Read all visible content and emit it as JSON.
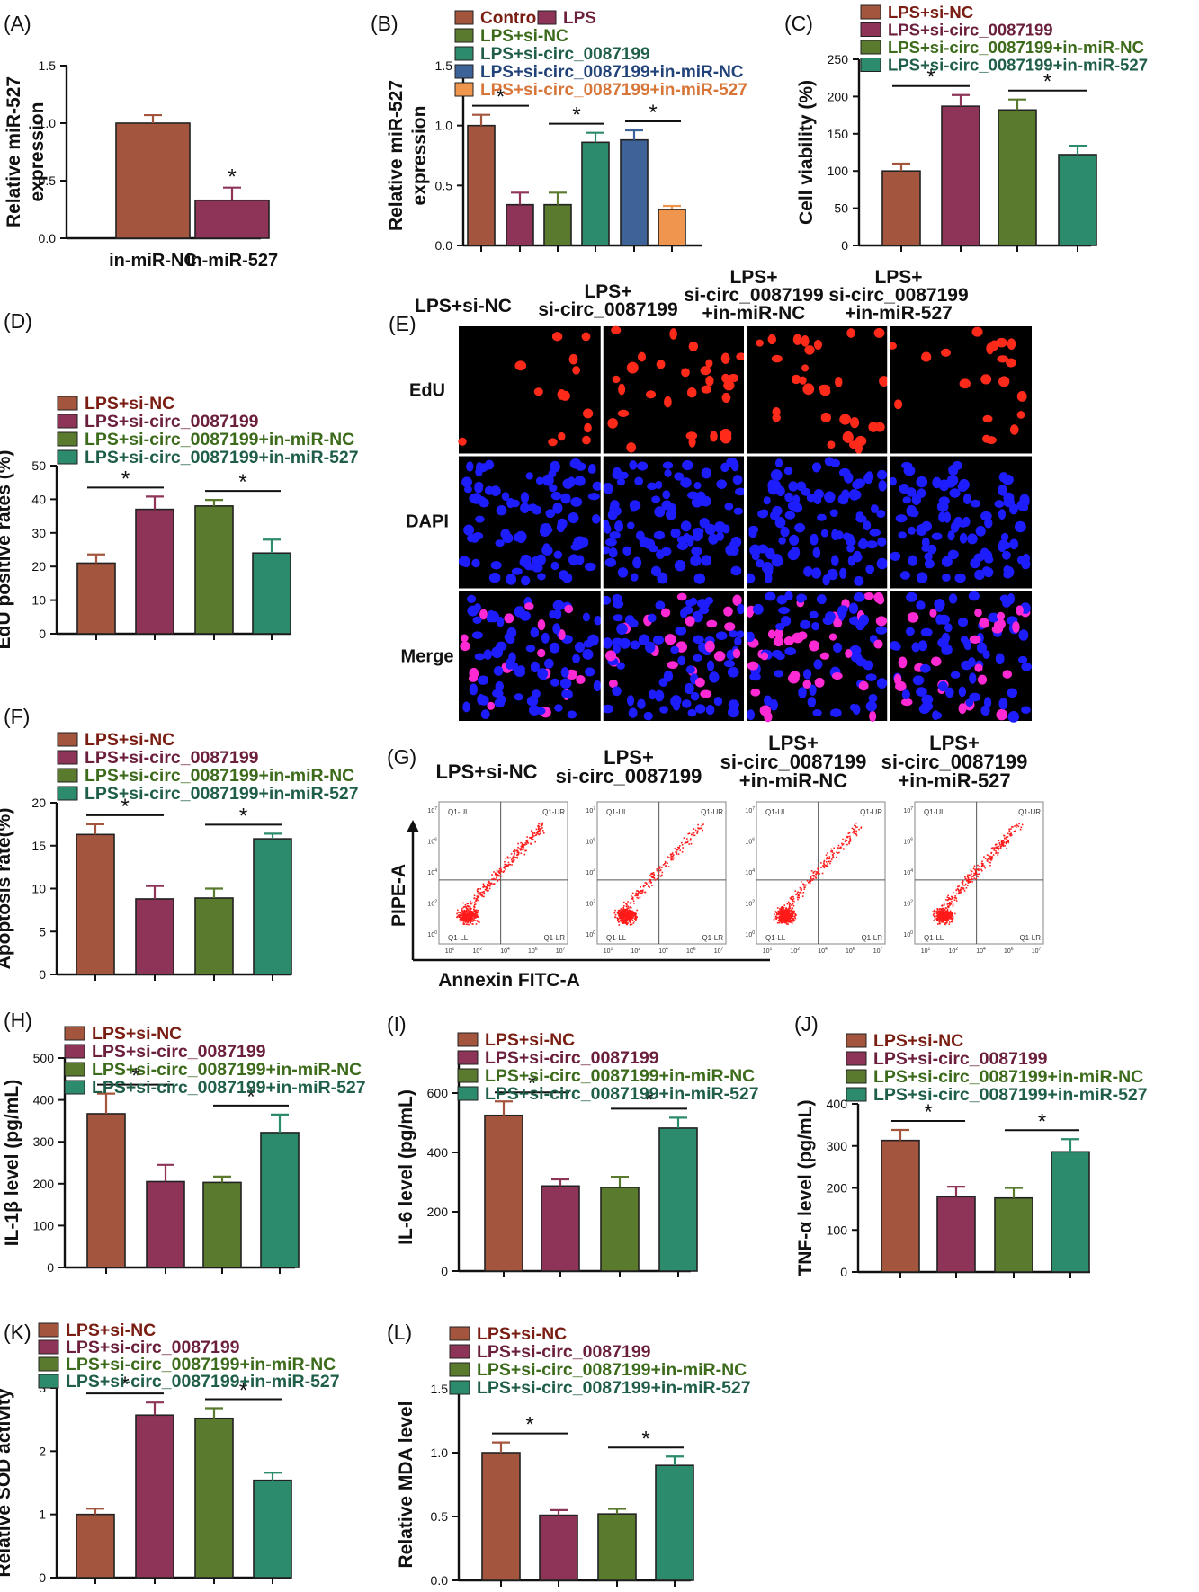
{
  "colors": {
    "c1": "#a4553e",
    "c2": "#8d3458",
    "c3": "#5a7a2d",
    "c4": "#2c8a6d",
    "c5": "#3d6399",
    "c6": "#f0954e",
    "axis": "#111111",
    "c1_text": "#7a1d12",
    "c2_text": "#6b1f3c",
    "c3_text": "#3d6b1c",
    "c4_text": "#1f5e47",
    "c5_text": "#22427a",
    "c6_text": "#d8763a"
  },
  "legend_groups4": [
    "LPS+si-NC",
    "LPS+si-circ_0087199",
    "LPS+si-circ_0087199+in-miR-NC",
    "LPS+si-circ_0087199+in-miR-527"
  ],
  "chart_data": [
    {
      "panel": "(A)",
      "type": "bar",
      "categories": [
        "in-miR-NC",
        "in-miR-527"
      ],
      "values": [
        1.0,
        0.33
      ],
      "errors": [
        0.07,
        0.11
      ],
      "ylabel": "Relative miR-527 expression",
      "ylim": [
        0,
        1.5
      ],
      "yticks": [
        "0.0",
        "0.5",
        "1.0",
        "1.5"
      ],
      "ytick_values": [
        0,
        0.5,
        1.0,
        1.5
      ],
      "significance": [
        {
          "star": "*",
          "bar": 1
        }
      ]
    },
    {
      "panel": "(B)",
      "type": "bar",
      "categories": [
        "Control",
        "LPS",
        "LPS+si-NC",
        "LPS+si-circ_0087199",
        "LPS+si-circ_0087199+in-miR-NC",
        "LPS+si-circ_0087199+in-miR-527"
      ],
      "values": [
        1.0,
        0.34,
        0.34,
        0.86,
        0.88,
        0.3
      ],
      "errors": [
        0.09,
        0.1,
        0.1,
        0.08,
        0.08,
        0.03
      ],
      "ylabel": "Relative miR-527 expression",
      "ylim": [
        0,
        1.5
      ],
      "yticks": [
        "0.0",
        "0.5",
        "1.0",
        "1.5"
      ],
      "ytick_values": [
        0,
        0.5,
        1.0,
        1.5
      ],
      "significance": [
        {
          "star": "*",
          "from": 0,
          "to": 1
        },
        {
          "star": "*",
          "from": 2,
          "to": 3
        },
        {
          "star": "*",
          "from": 4,
          "to": 5
        }
      ]
    },
    {
      "panel": "(C)",
      "type": "bar",
      "categories": [
        "LPS+si-NC",
        "LPS+si-circ_0087199",
        "LPS+si-circ_0087199+in-miR-NC",
        "LPS+si-circ_0087199+in-miR-527"
      ],
      "values": [
        100,
        187,
        182,
        122
      ],
      "errors": [
        10,
        15,
        14,
        12
      ],
      "ylabel": "Cell viability (%)",
      "ylim": [
        0,
        250
      ],
      "yticks": [
        "0",
        "50",
        "100",
        "150",
        "200",
        "250"
      ],
      "ytick_values": [
        0,
        50,
        100,
        150,
        200,
        250
      ],
      "significance": [
        {
          "star": "*",
          "from": 0,
          "to": 1
        },
        {
          "star": "*",
          "from": 2,
          "to": 3
        }
      ]
    },
    {
      "panel": "(D)",
      "type": "bar",
      "categories": [
        "LPS+si-NC",
        "LPS+si-circ_0087199",
        "LPS+si-circ_0087199+in-miR-NC",
        "LPS+si-circ_0087199+in-miR-527"
      ],
      "values": [
        21,
        37,
        38,
        24
      ],
      "errors": [
        2.6,
        3.8,
        1.8,
        4.0
      ],
      "ylabel": "EdU positive rates (%)",
      "ylim": [
        0,
        50
      ],
      "yticks": [
        "0",
        "10",
        "20",
        "30",
        "40",
        "50"
      ],
      "ytick_values": [
        0,
        10,
        20,
        30,
        40,
        50
      ],
      "significance": [
        {
          "star": "*",
          "from": 0,
          "to": 1
        },
        {
          "star": "*",
          "from": 2,
          "to": 3
        }
      ]
    },
    {
      "panel": "(F)",
      "type": "bar",
      "categories": [
        "LPS+si-NC",
        "LPS+si-circ_0087199",
        "LPS+si-circ_0087199+in-miR-NC",
        "LPS+si-circ_0087199+in-miR-527"
      ],
      "values": [
        16.3,
        8.8,
        8.9,
        15.8
      ],
      "errors": [
        1.2,
        1.5,
        1.1,
        0.6
      ],
      "ylabel": "Apoptosis rate(%)",
      "ylim": [
        0,
        20
      ],
      "yticks": [
        "0",
        "5",
        "10",
        "15",
        "20"
      ],
      "ytick_values": [
        0,
        5,
        10,
        15,
        20
      ],
      "significance": [
        {
          "star": "*",
          "from": 0,
          "to": 1
        },
        {
          "star": "*",
          "from": 2,
          "to": 3
        }
      ]
    },
    {
      "panel": "(H)",
      "type": "bar",
      "categories": [
        "LPS+si-NC",
        "LPS+si-circ_0087199",
        "LPS+si-circ_0087199+in-miR-NC",
        "LPS+si-circ_0087199+in-miR-527"
      ],
      "values": [
        367,
        205,
        203,
        322
      ],
      "errors": [
        48,
        40,
        14,
        43
      ],
      "ylabel": "IL-1β level (pg/mL)",
      "ylim": [
        0,
        500
      ],
      "yticks": [
        "0",
        "100",
        "200",
        "300",
        "400",
        "500"
      ],
      "ytick_values": [
        0,
        100,
        200,
        300,
        400,
        500
      ],
      "significance": [
        {
          "star": "*",
          "from": 0,
          "to": 1
        },
        {
          "star": "*",
          "from": 2,
          "to": 3
        }
      ]
    },
    {
      "panel": "(I)",
      "type": "bar",
      "categories": [
        "LPS+si-NC",
        "LPS+si-circ_0087199",
        "LPS+si-circ_0087199+in-miR-NC",
        "LPS+si-circ_0087199+in-miR-527"
      ],
      "values": [
        525,
        287,
        282,
        482
      ],
      "errors": [
        47,
        22,
        36,
        35
      ],
      "ylabel": "IL-6 level (pg/mL)",
      "ylim": [
        0,
        700
      ],
      "yticks": [
        "0",
        "200",
        "400",
        "600"
      ],
      "ytick_values": [
        0,
        200,
        400,
        600
      ],
      "significance": [
        {
          "star": "*",
          "from": 0,
          "to": 1
        },
        {
          "star": "*",
          "from": 2,
          "to": 3
        }
      ]
    },
    {
      "panel": "(J)",
      "type": "bar",
      "categories": [
        "LPS+si-NC",
        "LPS+si-circ_0087199",
        "LPS+si-circ_0087199+in-miR-NC",
        "LPS+si-circ_0087199+in-miR-527"
      ],
      "values": [
        313,
        179,
        176,
        286
      ],
      "errors": [
        25,
        24,
        24,
        30
      ],
      "ylabel": "TNF-α level (pg/mL)",
      "ylim": [
        0,
        400
      ],
      "yticks": [
        "0",
        "100",
        "200",
        "300",
        "400"
      ],
      "ytick_values": [
        0,
        100,
        200,
        300,
        400
      ],
      "significance": [
        {
          "star": "*",
          "from": 0,
          "to": 1
        },
        {
          "star": "*",
          "from": 2,
          "to": 3
        }
      ]
    },
    {
      "panel": "(K)",
      "type": "bar",
      "categories": [
        "LPS+si-NC",
        "LPS+si-circ_0087199",
        "LPS+si-circ_0087199+in-miR-NC",
        "LPS+si-circ_0087199+in-miR-527"
      ],
      "values": [
        1.0,
        2.57,
        2.52,
        1.54
      ],
      "errors": [
        0.09,
        0.2,
        0.16,
        0.12
      ],
      "ylabel": "Relative SOD activity",
      "ylim": [
        0,
        3
      ],
      "yticks": [
        "0",
        "1",
        "2",
        "3"
      ],
      "ytick_values": [
        0,
        1,
        2,
        3
      ],
      "significance": [
        {
          "star": "*",
          "from": 0,
          "to": 1
        },
        {
          "star": "*",
          "from": 2,
          "to": 3
        }
      ]
    },
    {
      "panel": "(L)",
      "type": "bar",
      "categories": [
        "LPS+si-NC",
        "LPS+si-circ_0087199",
        "LPS+si-circ_0087199+in-miR-NC",
        "LPS+si-circ_0087199+in-miR-527"
      ],
      "values": [
        1.0,
        0.51,
        0.52,
        0.9
      ],
      "errors": [
        0.08,
        0.04,
        0.04,
        0.07
      ],
      "ylabel": "Relative MDA level",
      "ylim": [
        0,
        1.5
      ],
      "yticks": [
        "0.0",
        "0.5",
        "1.0",
        "1.5"
      ],
      "ytick_values": [
        0,
        0.5,
        1.0,
        1.5
      ],
      "significance": [
        {
          "star": "*",
          "from": 0,
          "to": 1
        },
        {
          "star": "*",
          "from": 2,
          "to": 3
        }
      ]
    }
  ],
  "panel_E": {
    "label": "(E)",
    "col_headers": [
      [
        "LPS+si-NC"
      ],
      [
        "LPS+",
        "si-circ_0087199"
      ],
      [
        "LPS+",
        "si-circ_0087199",
        "+in-miR-NC"
      ],
      [
        "LPS+",
        "si-circ_0087199",
        "+in-miR-527"
      ]
    ],
    "row_labels": [
      "EdU",
      "DAPI",
      "Merge"
    ],
    "row_colors": [
      "#000000",
      "#000000",
      "#000000"
    ],
    "nucleus_colors": [
      "#ff2a1a",
      "#1d1dff",
      "#ff2ad4"
    ]
  },
  "panel_G": {
    "label": "(G)",
    "col_headers": [
      [
        "LPS+si-NC"
      ],
      [
        "LPS+",
        "si-circ_0087199"
      ],
      [
        "LPS+",
        "si-circ_0087199",
        "+in-miR-NC"
      ],
      [
        "LPS+",
        "si-circ_0087199",
        "+in-miR-527"
      ]
    ],
    "ylabel": "PIPE-A",
    "xlabel": "Annexin FITC-A",
    "quadrants": [
      "Q1-UL",
      "Q1-UR",
      "Q1-LL",
      "Q1-LR"
    ],
    "xticks": [
      "10",
      "10",
      "10",
      "10",
      "10"
    ],
    "x_exponents": [
      "1",
      "2",
      "4",
      "6",
      "7"
    ],
    "yticks": [
      "10",
      "10",
      "10",
      "10",
      "10"
    ],
    "y_exponents": [
      "0",
      "2",
      "4",
      "6",
      "7"
    ],
    "dot_color": "#ff1a1a"
  }
}
